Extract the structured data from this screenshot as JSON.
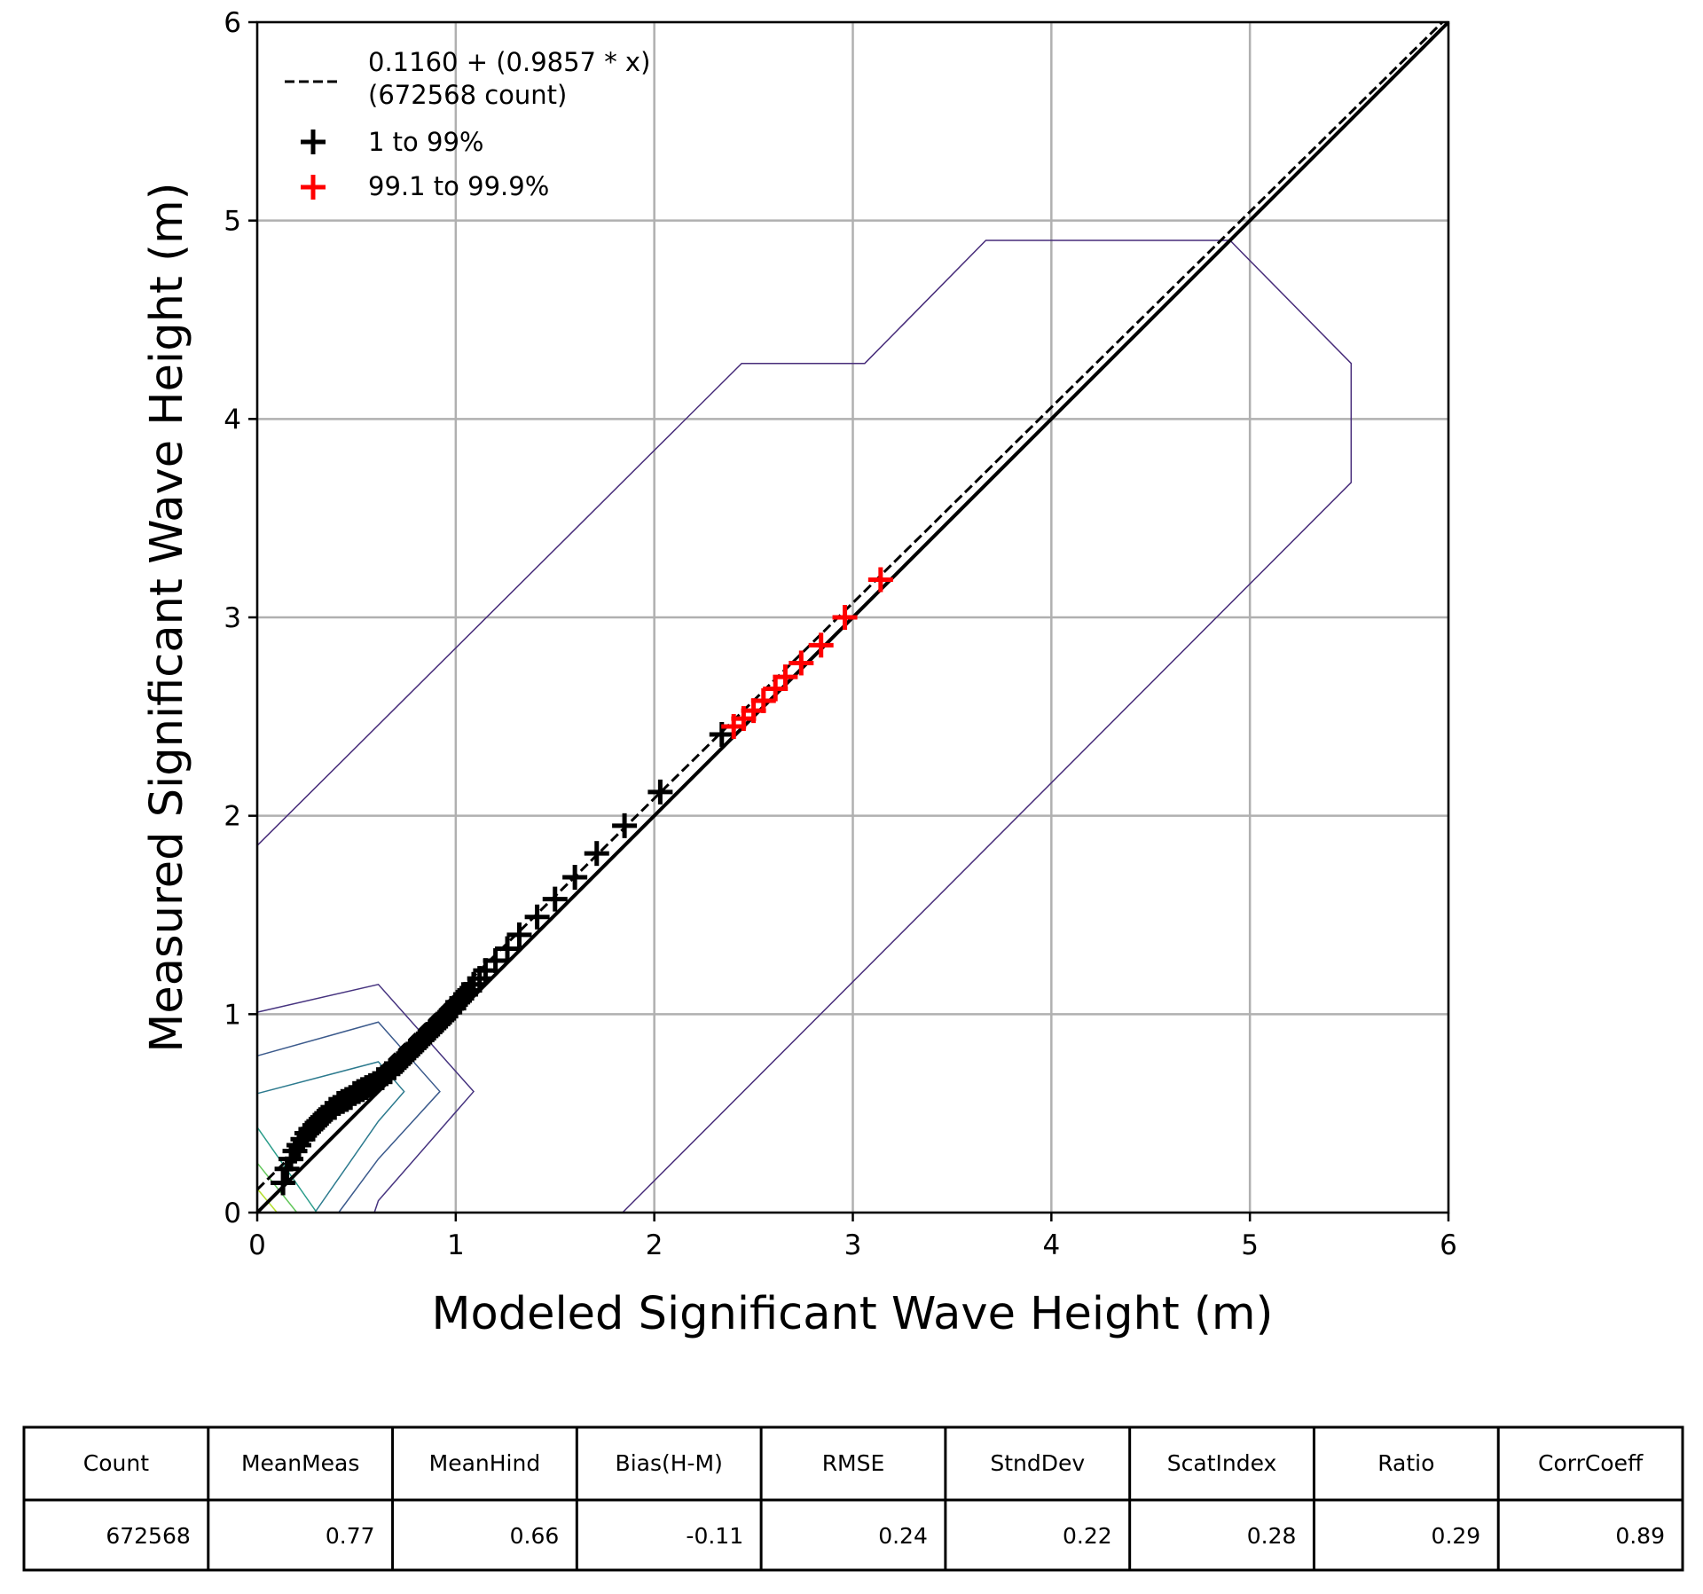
{
  "chart_data": {
    "type": "scatter",
    "xlabel": "Modeled Significant Wave Height (m)",
    "ylabel": "Measured Significant Wave Height (m)",
    "xlim": [
      0,
      6
    ],
    "ylim": [
      0,
      6
    ],
    "xticks": [
      "0",
      "1",
      "2",
      "3",
      "4",
      "5",
      "6"
    ],
    "yticks": [
      "0",
      "1",
      "2",
      "3",
      "4",
      "5",
      "6"
    ],
    "grid": true,
    "legend_placement": "top-left",
    "fit_line": {
      "intercept": 0.116,
      "slope": 0.9857,
      "style": "dashed",
      "color": "#000000",
      "label_line1": "0.1160 + (0.9857 * x)",
      "label_line2": "(672568 count)"
    },
    "identity_line": {
      "color": "#000000"
    },
    "series": [
      {
        "name": "1 to 99%",
        "color": "#000000",
        "marker": "plus",
        "x": [
          0.13,
          0.15,
          0.17,
          0.19,
          0.21,
          0.23,
          0.25,
          0.27,
          0.29,
          0.31,
          0.33,
          0.35,
          0.37,
          0.39,
          0.41,
          0.43,
          0.45,
          0.47,
          0.49,
          0.51,
          0.53,
          0.55,
          0.57,
          0.59,
          0.61,
          0.63,
          0.65,
          0.67,
          0.69,
          0.71,
          0.73,
          0.75,
          0.77,
          0.79,
          0.81,
          0.83,
          0.85,
          0.87,
          0.89,
          0.91,
          0.93,
          0.95,
          0.97,
          0.99,
          1.01,
          1.03,
          1.05,
          1.07,
          1.09,
          1.12,
          1.15,
          1.2,
          1.26,
          1.32,
          1.41,
          1.5,
          1.6,
          1.71,
          1.85,
          2.03,
          2.34
        ],
        "y": [
          0.15,
          0.22,
          0.27,
          0.31,
          0.34,
          0.37,
          0.4,
          0.42,
          0.44,
          0.46,
          0.48,
          0.5,
          0.52,
          0.53,
          0.55,
          0.56,
          0.57,
          0.58,
          0.6,
          0.61,
          0.62,
          0.63,
          0.64,
          0.65,
          0.67,
          0.68,
          0.7,
          0.71,
          0.73,
          0.75,
          0.77,
          0.79,
          0.81,
          0.83,
          0.85,
          0.87,
          0.89,
          0.91,
          0.93,
          0.95,
          0.97,
          0.99,
          1.01,
          1.03,
          1.06,
          1.08,
          1.1,
          1.12,
          1.15,
          1.18,
          1.22,
          1.27,
          1.33,
          1.4,
          1.49,
          1.58,
          1.69,
          1.81,
          1.95,
          2.12,
          2.41
        ]
      },
      {
        "name": "99.1 to 99.9%",
        "color": "#ff0000",
        "marker": "plus",
        "x": [
          2.4,
          2.45,
          2.5,
          2.55,
          2.61,
          2.66,
          2.74,
          2.84,
          2.96,
          3.14
        ],
        "y": [
          2.45,
          2.49,
          2.53,
          2.58,
          2.64,
          2.7,
          2.77,
          2.86,
          3.0,
          3.19
        ]
      }
    ],
    "contours": [
      {
        "color": "#472c7a",
        "x": [
          0,
          2.44,
          3.06,
          3.67,
          4.9,
          5.51,
          5.51,
          1.84
        ],
        "y": [
          1.85,
          4.28,
          4.28,
          4.9,
          4.9,
          4.28,
          3.68,
          0
        ]
      },
      {
        "color": "#46337f",
        "x": [
          0,
          0.61,
          1.09,
          0.61,
          0.59
        ],
        "y": [
          1.01,
          1.15,
          0.61,
          0.06,
          0
        ]
      },
      {
        "color": "#3b5a8c",
        "x": [
          0,
          0.61,
          0.92,
          0.61,
          0.41
        ],
        "y": [
          0.79,
          0.96,
          0.61,
          0.27,
          0
        ]
      },
      {
        "color": "#2c7a8e",
        "x": [
          0,
          0.61,
          0.74,
          0.61,
          0.29
        ],
        "y": [
          0.6,
          0.76,
          0.61,
          0.46,
          0
        ]
      },
      {
        "color": "#2a9d8a",
        "x": [
          0,
          0.3
        ],
        "y": [
          0.43,
          0
        ]
      },
      {
        "color": "#62c75a",
        "x": [
          0,
          0.2
        ],
        "y": [
          0.25,
          0
        ]
      },
      {
        "color": "#b5de2b",
        "x": [
          0,
          0.1
        ],
        "y": [
          0.12,
          0
        ]
      }
    ]
  },
  "stats_table": {
    "headers": [
      "Count",
      "MeanMeas",
      "MeanHind",
      "Bias(H-M)",
      "RMSE",
      "StndDev",
      "ScatIndex",
      "Ratio",
      "CorrCoeff"
    ],
    "values": [
      "672568",
      "0.77",
      "0.66",
      "-0.11",
      "0.24",
      "0.22",
      "0.28",
      "0.29",
      "0.89"
    ]
  }
}
